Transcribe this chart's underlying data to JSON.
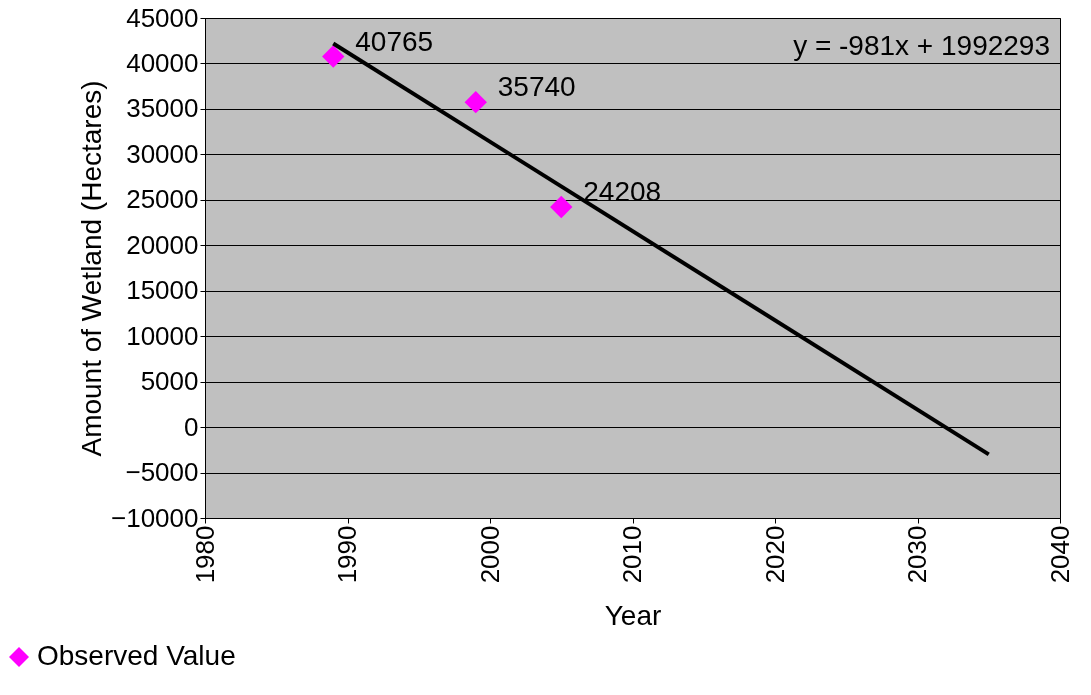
{
  "chart_data": {
    "type": "scatter",
    "xlabel": "Year",
    "ylabel": "Amount of Wetland (Hectares)",
    "xlim": [
      1980,
      2040
    ],
    "xticks": [
      1980,
      1990,
      2000,
      2010,
      2020,
      2030,
      2040
    ],
    "ylim": [
      -10000,
      45000
    ],
    "yticks": [
      -10000,
      -5000,
      0,
      5000,
      10000,
      15000,
      20000,
      25000,
      30000,
      35000,
      40000,
      45000
    ],
    "grid": "y",
    "legend": "bottom left",
    "annotations": [
      "y = -981x + 1992293"
    ],
    "series": [
      {
        "name": "Observed Value",
        "marker": "diamond",
        "color": "#ff00ff",
        "x": [
          1989,
          1999,
          2005
        ],
        "values": [
          40765,
          35740,
          24208
        ],
        "value_labels": [
          "40765",
          "35740",
          "24208"
        ]
      },
      {
        "type": "line",
        "marker": "none",
        "line_style": "solid",
        "color": "#000000",
        "x": [
          1989,
          2035
        ],
        "values": [
          42200,
          -3000
        ]
      }
    ]
  }
}
